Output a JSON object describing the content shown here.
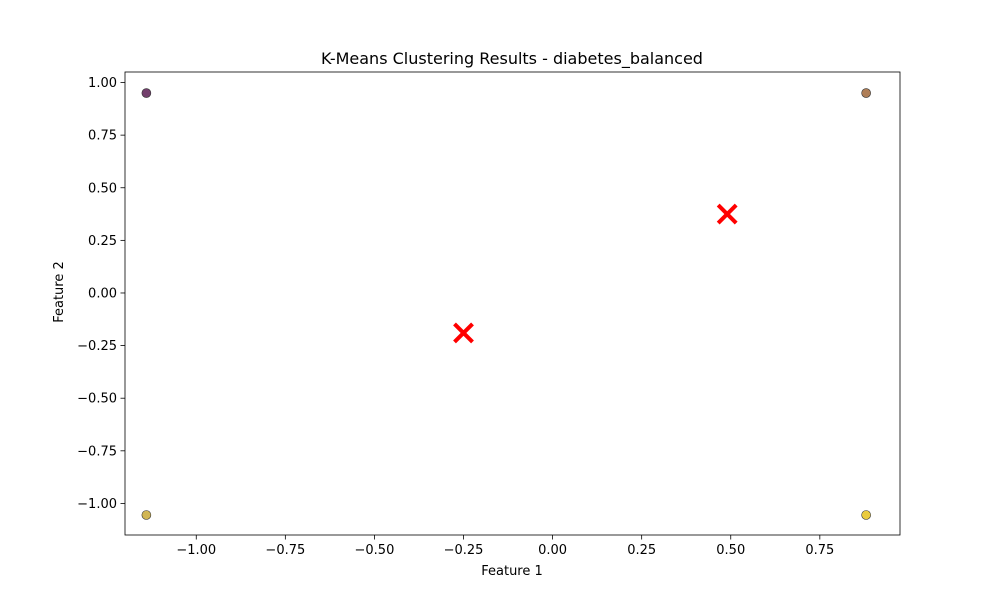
{
  "chart_data": {
    "type": "scatter",
    "title": "K-Means Clustering Results - diabetes_balanced",
    "xlabel": "Feature 1",
    "ylabel": "Feature 2",
    "xlim": [
      -1.2,
      0.975
    ],
    "ylim": [
      -1.15,
      1.05
    ],
    "xticks": [
      -1.0,
      -0.75,
      -0.5,
      -0.25,
      0.0,
      0.25,
      0.5,
      0.75
    ],
    "xtick_labels": [
      "−1.00",
      "−0.75",
      "−0.50",
      "−0.25",
      "0.00",
      "0.25",
      "0.50",
      "0.75"
    ],
    "yticks": [
      -1.0,
      -0.75,
      -0.5,
      -0.25,
      0.0,
      0.25,
      0.5,
      0.75,
      1.0
    ],
    "ytick_labels": [
      "−1.00",
      "−0.75",
      "−0.50",
      "−0.25",
      "0.00",
      "0.25",
      "0.50",
      "0.75",
      "1.00"
    ],
    "grid": false,
    "series": [
      {
        "marker": "circle",
        "points": [
          {
            "x": -1.14,
            "y": 0.95,
            "color": "#5b1d52"
          },
          {
            "x": 0.88,
            "y": 0.95,
            "color": "#a1673a"
          },
          {
            "x": -1.14,
            "y": -1.055,
            "color": "#c9a936"
          },
          {
            "x": 0.88,
            "y": -1.055,
            "color": "#e6c21c"
          }
        ]
      },
      {
        "marker": "x",
        "color": "#ff0000",
        "points": [
          {
            "x": -0.25,
            "y": -0.19
          },
          {
            "x": 0.49,
            "y": 0.375
          }
        ]
      }
    ]
  }
}
